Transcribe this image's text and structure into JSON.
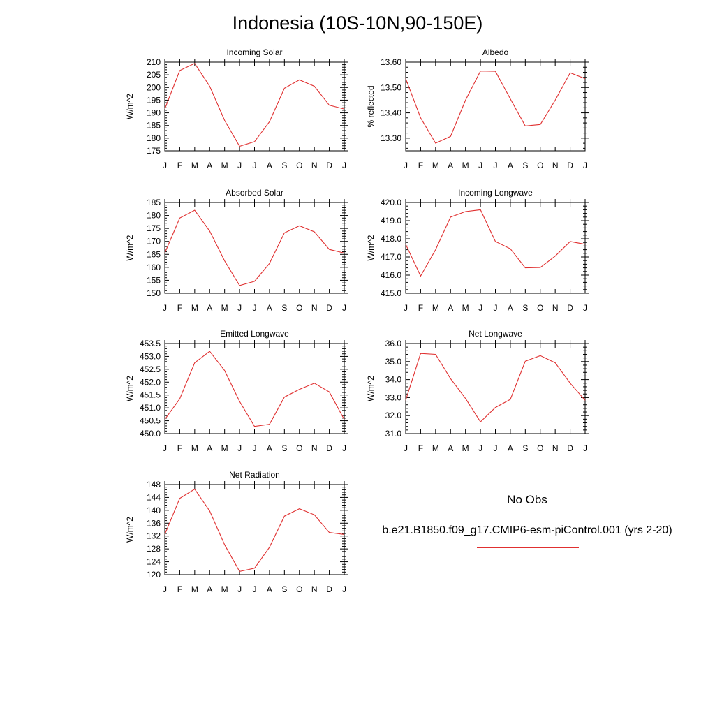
{
  "title": "Indonesia (10S-10N,90-150E)",
  "legend": {
    "obs_label": "No Obs",
    "obs_color": "#4040e0",
    "model_label": "b.e21.B1850.f09_g17.CMIP6-esm-piControl.001 (yrs 2-20)",
    "model_color": "#e03030"
  },
  "chart_data": [
    {
      "type": "line",
      "title": "Incoming Solar",
      "ylabel": "W/m^2",
      "categories": [
        "J",
        "F",
        "M",
        "A",
        "M",
        "J",
        "J",
        "A",
        "S",
        "O",
        "N",
        "D",
        "J"
      ],
      "ylim": [
        175,
        210
      ],
      "yticks": [
        "175",
        "180",
        "185",
        "190",
        "195",
        "200",
        "205",
        "210"
      ],
      "series": [
        {
          "name": "b.e21.B1850.f09_g17.CMIP6-esm-piControl.001 (yrs 2-20)",
          "values": [
            191.5,
            206.7,
            209.5,
            200.5,
            187.0,
            176.8,
            178.6,
            186.5,
            199.7,
            203.0,
            200.5,
            193.0,
            191.5
          ]
        }
      ]
    },
    {
      "type": "line",
      "title": "Albedo",
      "ylabel": "% reflected",
      "categories": [
        "J",
        "F",
        "M",
        "A",
        "M",
        "J",
        "J",
        "A",
        "S",
        "O",
        "N",
        "D",
        "J"
      ],
      "ylim": [
        13.25,
        13.6
      ],
      "yticks": [
        "13.30",
        "13.40",
        "13.50",
        "13.60"
      ],
      "series": [
        {
          "name": "b.e21.B1850.f09_g17.CMIP6-esm-piControl.001 (yrs 2-20)",
          "values": [
            13.535,
            13.38,
            13.28,
            13.307,
            13.45,
            13.565,
            13.564,
            13.455,
            13.348,
            13.354,
            13.45,
            13.558,
            13.535
          ]
        }
      ]
    },
    {
      "type": "line",
      "title": "Absorbed Solar",
      "ylabel": "W/m^2",
      "categories": [
        "J",
        "F",
        "M",
        "A",
        "M",
        "J",
        "J",
        "A",
        "S",
        "O",
        "N",
        "D",
        "J"
      ],
      "ylim": [
        150,
        185
      ],
      "yticks": [
        "150",
        "155",
        "160",
        "165",
        "170",
        "175",
        "180",
        "185"
      ],
      "series": [
        {
          "name": "b.e21.B1850.f09_g17.CMIP6-esm-piControl.001 (yrs 2-20)",
          "values": [
            165.5,
            179.0,
            182.0,
            174.0,
            162.5,
            153.0,
            154.6,
            161.5,
            173.3,
            176.0,
            173.7,
            166.9,
            165.5
          ]
        }
      ]
    },
    {
      "type": "line",
      "title": "Incoming Longwave",
      "ylabel": "W/m^2",
      "categories": [
        "J",
        "F",
        "M",
        "A",
        "M",
        "J",
        "J",
        "A",
        "S",
        "O",
        "N",
        "D",
        "J"
      ],
      "ylim": [
        415.0,
        420.0
      ],
      "yticks": [
        "415.0",
        "416.0",
        "417.0",
        "418.0",
        "419.0",
        "420.0"
      ],
      "series": [
        {
          "name": "b.e21.B1850.f09_g17.CMIP6-esm-piControl.001 (yrs 2-20)",
          "values": [
            417.7,
            415.95,
            417.4,
            419.2,
            419.5,
            419.6,
            417.85,
            417.45,
            416.4,
            416.42,
            417.05,
            417.85,
            417.7
          ]
        }
      ]
    },
    {
      "type": "line",
      "title": "Emitted Longwave",
      "ylabel": "W/m^2",
      "categories": [
        "J",
        "F",
        "M",
        "A",
        "M",
        "J",
        "J",
        "A",
        "S",
        "O",
        "N",
        "D",
        "J"
      ],
      "ylim": [
        450.0,
        453.5
      ],
      "yticks": [
        "450.0",
        "450.5",
        "451.0",
        "451.5",
        "452.0",
        "452.5",
        "453.0",
        "453.5"
      ],
      "series": [
        {
          "name": "b.e21.B1850.f09_g17.CMIP6-esm-piControl.001 (yrs 2-20)",
          "values": [
            450.55,
            451.35,
            452.75,
            453.2,
            452.45,
            451.25,
            450.28,
            450.36,
            451.42,
            451.72,
            451.96,
            451.62,
            450.55
          ]
        }
      ]
    },
    {
      "type": "line",
      "title": "Net Longwave",
      "ylabel": "W/m^2",
      "categories": [
        "J",
        "F",
        "M",
        "A",
        "M",
        "J",
        "J",
        "A",
        "S",
        "O",
        "N",
        "D",
        "J"
      ],
      "ylim": [
        31.0,
        36.0
      ],
      "yticks": [
        "31.0",
        "32.0",
        "33.0",
        "34.0",
        "35.0",
        "36.0"
      ],
      "series": [
        {
          "name": "b.e21.B1850.f09_g17.CMIP6-esm-piControl.001 (yrs 2-20)",
          "values": [
            32.85,
            35.45,
            35.4,
            34.05,
            32.95,
            31.65,
            32.45,
            32.9,
            35.02,
            35.33,
            34.93,
            33.8,
            32.85
          ]
        }
      ]
    },
    {
      "type": "line",
      "title": "Net Radiation",
      "ylabel": "W/m^2",
      "categories": [
        "J",
        "F",
        "M",
        "A",
        "M",
        "J",
        "J",
        "A",
        "S",
        "O",
        "N",
        "D",
        "J"
      ],
      "ylim": [
        120,
        148
      ],
      "yticks": [
        "120",
        "124",
        "128",
        "132",
        "136",
        "140",
        "144",
        "148"
      ],
      "series": [
        {
          "name": "b.e21.B1850.f09_g17.CMIP6-esm-piControl.001 (yrs 2-20)",
          "values": [
            132.5,
            143.7,
            146.6,
            139.8,
            129.3,
            121.0,
            122.0,
            128.5,
            138.2,
            140.5,
            138.6,
            133.1,
            132.5
          ]
        }
      ]
    }
  ]
}
